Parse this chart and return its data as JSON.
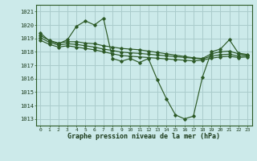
{
  "title": "Graphe pression niveau de la mer (hPa)",
  "bg_color": "#cceaea",
  "grid_color": "#aacccc",
  "line_color": "#2d5a27",
  "x_ticks": [
    0,
    1,
    2,
    3,
    4,
    5,
    6,
    7,
    8,
    9,
    10,
    11,
    12,
    13,
    14,
    15,
    16,
    17,
    18,
    19,
    20,
    21,
    22,
    23
  ],
  "ylim": [
    1012.5,
    1021.5
  ],
  "yticks": [
    1013,
    1014,
    1015,
    1016,
    1017,
    1018,
    1019,
    1020,
    1021
  ],
  "series1": [
    1019.4,
    1018.8,
    1018.6,
    1018.9,
    1019.9,
    1020.3,
    1020.0,
    1020.5,
    1017.5,
    1017.3,
    1017.5,
    1017.2,
    1017.5,
    1015.9,
    1014.5,
    1013.3,
    1013.0,
    1013.2,
    1016.1,
    1018.0,
    1018.2,
    1018.9,
    1017.9,
    1017.8
  ],
  "series2": [
    1019.2,
    1018.85,
    1018.65,
    1018.75,
    1018.75,
    1018.65,
    1018.6,
    1018.45,
    1018.35,
    1018.25,
    1018.2,
    1018.15,
    1018.05,
    1017.95,
    1017.85,
    1017.75,
    1017.65,
    1017.55,
    1017.5,
    1017.85,
    1018.0,
    1018.05,
    1017.85,
    1017.75
  ],
  "series3": [
    1019.05,
    1018.7,
    1018.5,
    1018.6,
    1018.55,
    1018.45,
    1018.35,
    1018.2,
    1018.1,
    1017.98,
    1017.92,
    1017.88,
    1017.82,
    1017.76,
    1017.7,
    1017.64,
    1017.58,
    1017.52,
    1017.46,
    1017.68,
    1017.78,
    1017.82,
    1017.68,
    1017.72
  ],
  "series4": [
    1018.85,
    1018.55,
    1018.35,
    1018.45,
    1018.35,
    1018.25,
    1018.15,
    1018.0,
    1017.85,
    1017.72,
    1017.67,
    1017.62,
    1017.57,
    1017.52,
    1017.47,
    1017.42,
    1017.37,
    1017.32,
    1017.38,
    1017.52,
    1017.62,
    1017.67,
    1017.57,
    1017.62
  ]
}
